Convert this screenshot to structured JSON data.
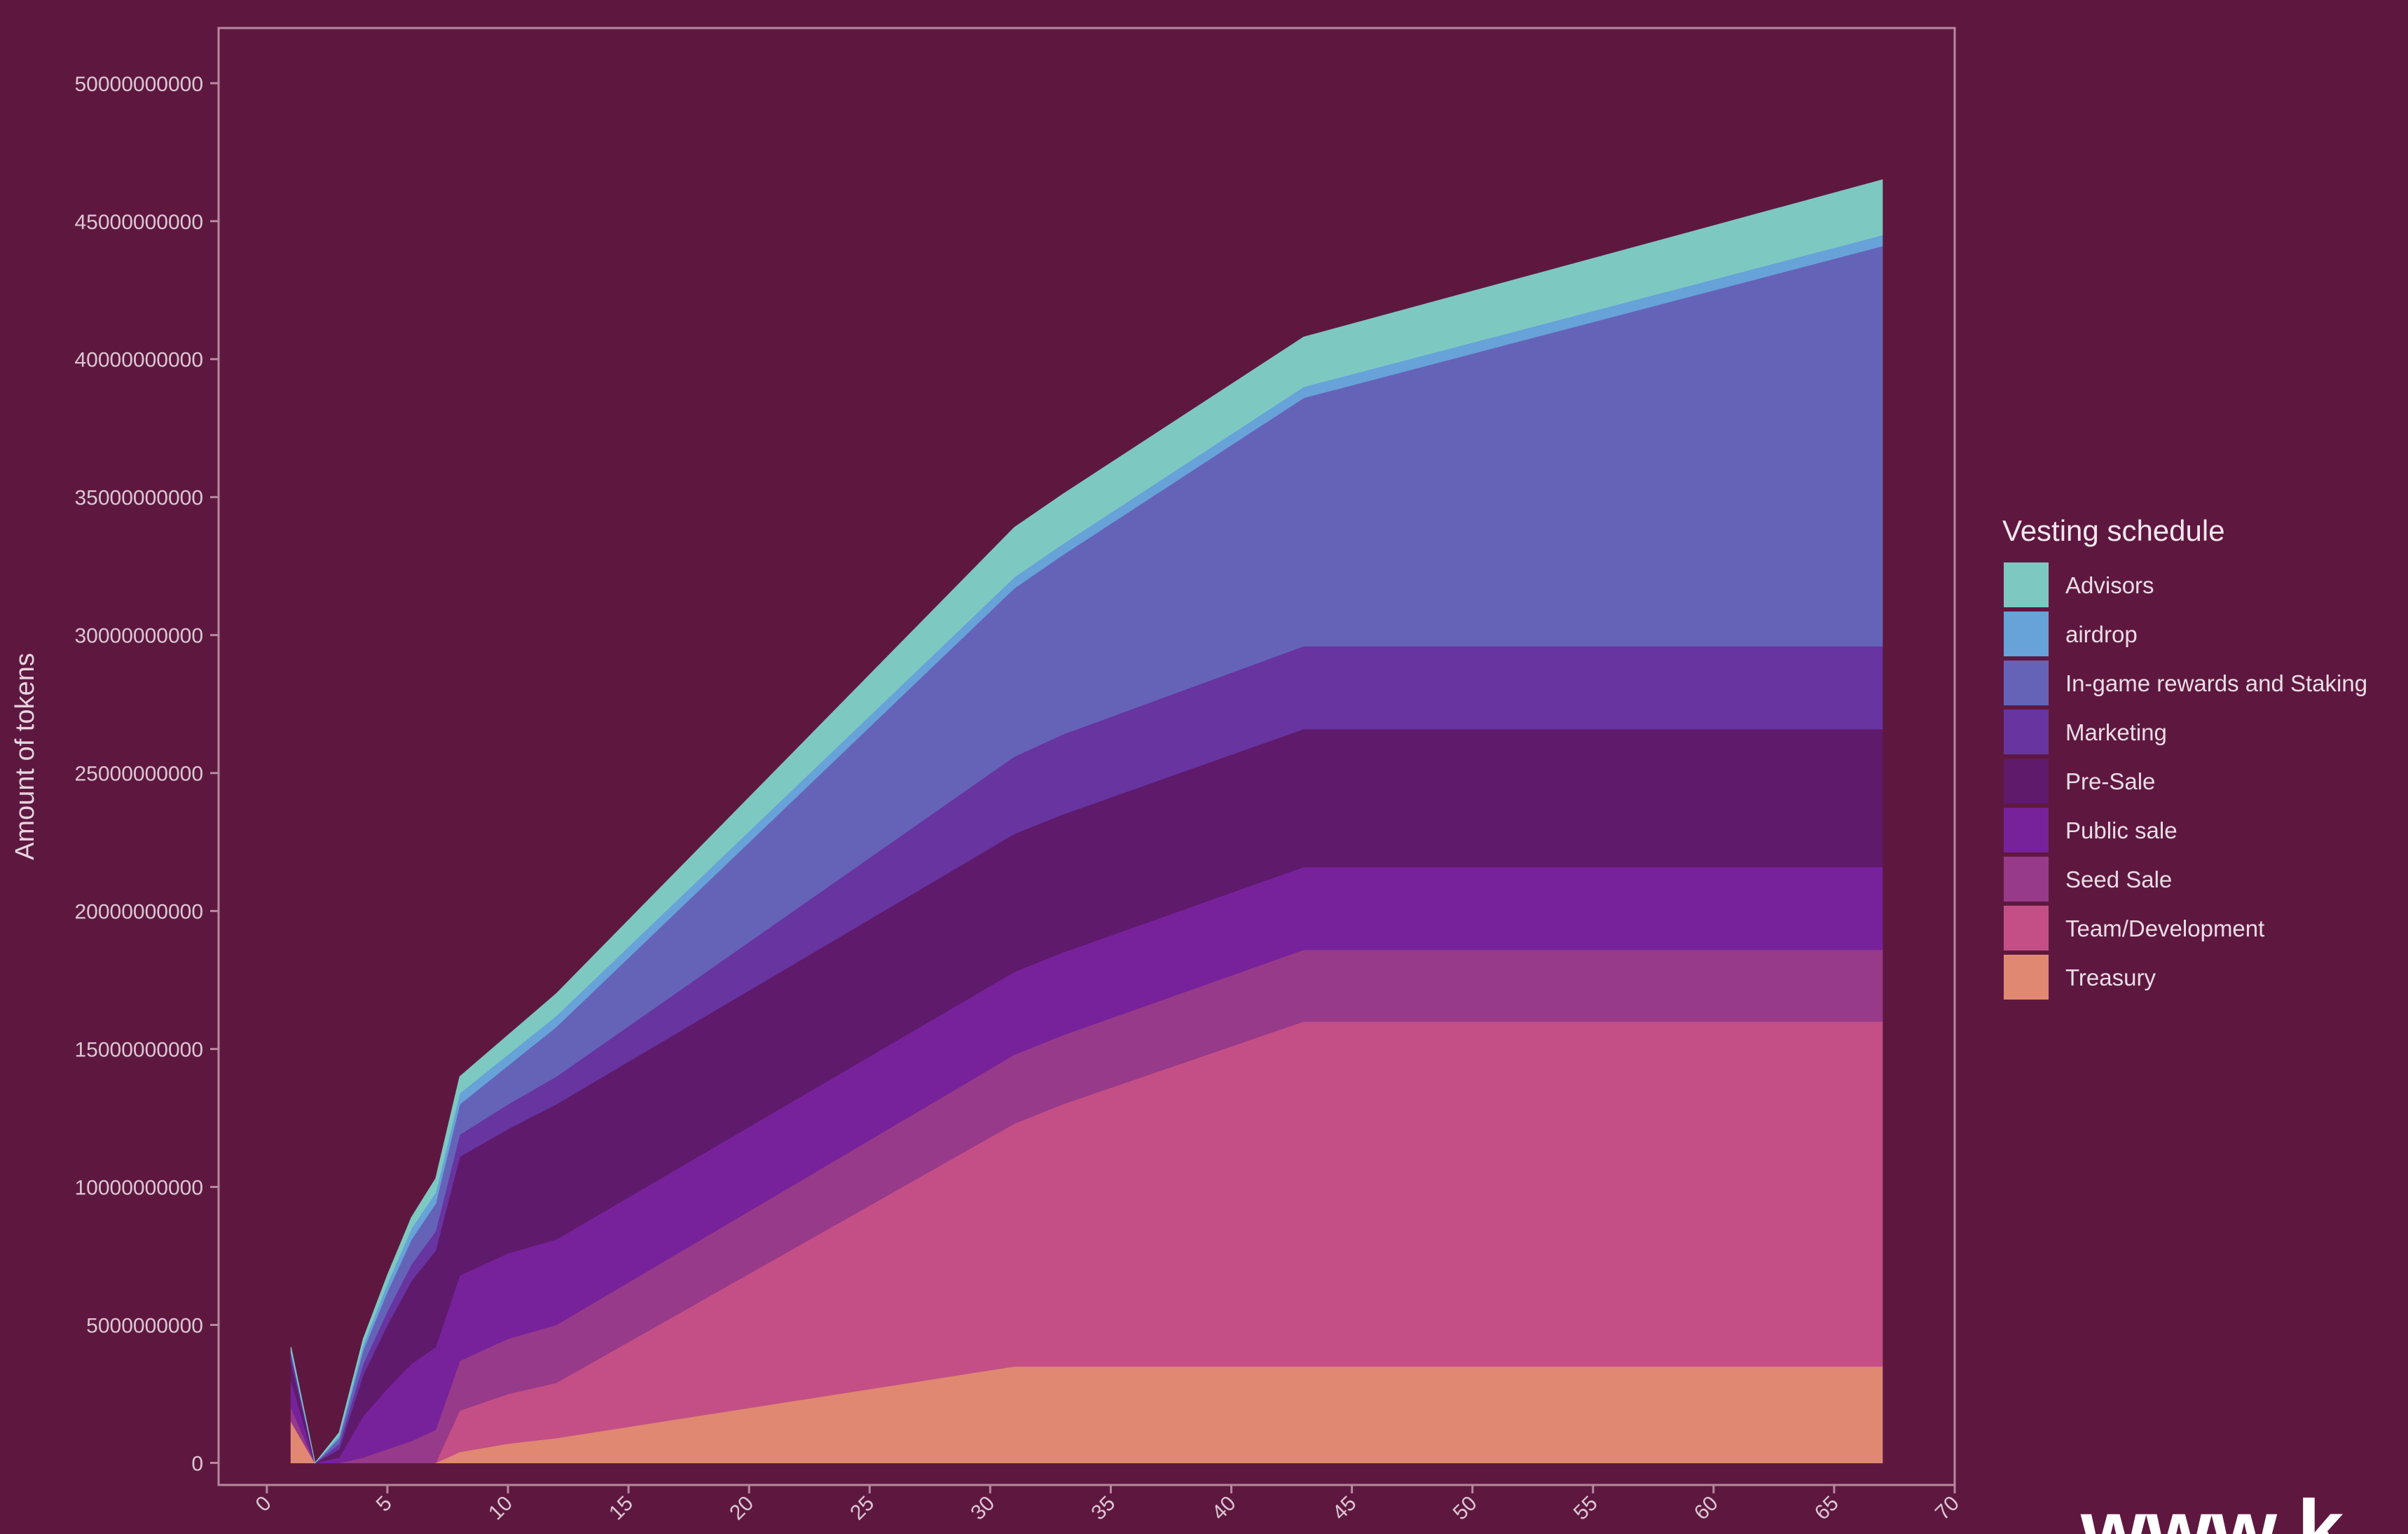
{
  "chart_data": {
    "type": "area",
    "stacked": true,
    "title": "",
    "xlabel": "",
    "ylabel": "Amount of tokens",
    "xlim": [
      -2,
      70
    ],
    "ylim": [
      -800000000,
      52000000000
    ],
    "x_ticks": [
      0,
      5,
      10,
      15,
      20,
      25,
      30,
      35,
      40,
      45,
      50,
      55,
      60,
      65,
      70
    ],
    "y_ticks": [
      0,
      5000000000,
      10000000000,
      15000000000,
      20000000000,
      25000000000,
      30000000000,
      35000000000,
      40000000000,
      45000000000,
      50000000000
    ],
    "x_tick_labels": [
      "0",
      "5",
      "10",
      "15",
      "20",
      "25",
      "30",
      "35",
      "40",
      "45",
      "50",
      "55",
      "60",
      "65",
      "70"
    ],
    "y_tick_labels": [
      "0",
      "5000000000",
      "10000000000",
      "15000000000",
      "20000000000",
      "25000000000",
      "30000000000",
      "35000000000",
      "40000000000",
      "45000000000",
      "50000000000"
    ],
    "grid": false,
    "legend_title": "Vesting schedule",
    "legend_position": "right",
    "x": [
      1,
      2,
      3,
      4,
      5,
      6,
      7,
      8,
      10,
      12,
      31,
      33,
      43,
      67
    ],
    "series": [
      {
        "name": "Treasury",
        "color": "#e08872",
        "values": [
          1500000000,
          0,
          0,
          0,
          0,
          0,
          0,
          400000000,
          700000000,
          900000000,
          3500000000,
          3500000000,
          3500000000,
          3500000000
        ]
      },
      {
        "name": "Team/Development",
        "color": "#c44f86",
        "values": [
          0,
          0,
          0,
          0,
          0,
          0,
          0,
          1500000000,
          1800000000,
          2000000000,
          8800000000,
          9500000000,
          12500000000,
          12500000000
        ]
      },
      {
        "name": "Seed Sale",
        "color": "#973a8a",
        "values": [
          500000000,
          0,
          0,
          200000000,
          500000000,
          800000000,
          1200000000,
          1800000000,
          2000000000,
          2100000000,
          2500000000,
          2500000000,
          2600000000,
          2600000000
        ]
      },
      {
        "name": "Public sale",
        "color": "#77229a",
        "values": [
          1000000000,
          0,
          200000000,
          1500000000,
          2200000000,
          2800000000,
          3000000000,
          3100000000,
          3100000000,
          3100000000,
          3000000000,
          3000000000,
          3000000000,
          3000000000
        ]
      },
      {
        "name": "Pre-Sale",
        "color": "#5f1a6c",
        "values": [
          700000000,
          0,
          300000000,
          1500000000,
          2300000000,
          3000000000,
          3500000000,
          4300000000,
          4500000000,
          4900000000,
          5000000000,
          5000000000,
          5000000000,
          5000000000
        ]
      },
      {
        "name": "Marketing",
        "color": "#6734a0",
        "values": [
          300000000,
          0,
          200000000,
          400000000,
          500000000,
          600000000,
          700000000,
          800000000,
          900000000,
          1000000000,
          2800000000,
          2900000000,
          3000000000,
          3000000000
        ]
      },
      {
        "name": "In-game rewards and Staking",
        "color": "#6563b8",
        "values": [
          0,
          0,
          200000000,
          500000000,
          700000000,
          900000000,
          1000000000,
          1100000000,
          1400000000,
          1800000000,
          6100000000,
          6500000000,
          9000000000,
          14500000000
        ]
      },
      {
        "name": "airdrop",
        "color": "#67a2d8",
        "values": [
          100000000,
          0,
          100000000,
          200000000,
          300000000,
          400000000,
          400000000,
          400000000,
          400000000,
          400000000,
          400000000,
          400000000,
          400000000,
          400000000
        ]
      },
      {
        "name": "Advisors",
        "color": "#7ec8c2",
        "values": [
          100000000,
          0,
          100000000,
          200000000,
          300000000,
          400000000,
          500000000,
          600000000,
          700000000,
          800000000,
          1800000000,
          1800000000,
          1800000000,
          2000000000
        ]
      }
    ]
  },
  "legend_order": [
    "Advisors",
    "airdrop",
    "In-game rewards and Staking",
    "Marketing",
    "Pre-Sale",
    "Public sale",
    "Seed Sale",
    "Team/Development",
    "Treasury"
  ],
  "colors": {
    "background": "#5e1840",
    "panel_border": "#b8879f",
    "axis_text": "#dcc7d3"
  },
  "watermark": "www.k"
}
